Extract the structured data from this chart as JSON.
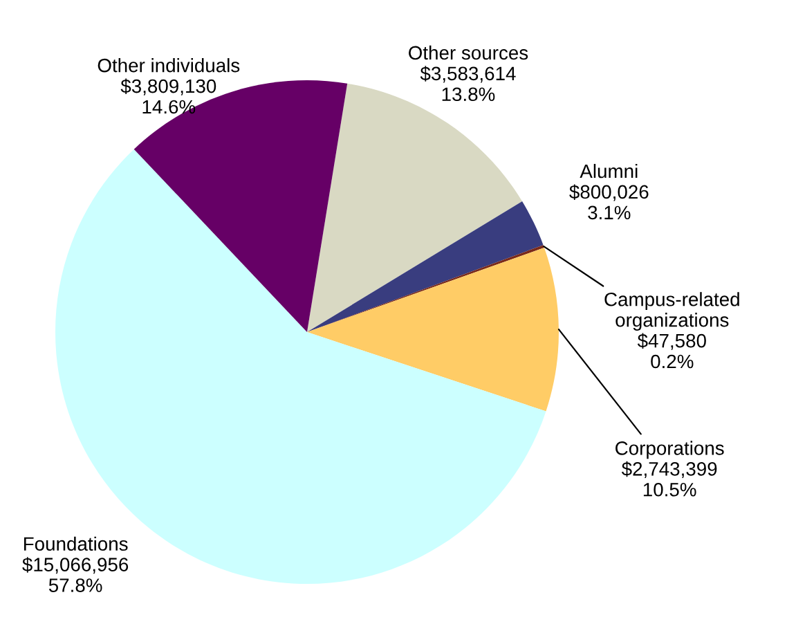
{
  "chart_data": {
    "type": "pie",
    "categories": [
      "Other sources",
      "Alumni",
      "Campus-related\norganizations",
      "Corporations",
      "Foundations",
      "Other individuals"
    ],
    "values": [
      3583614,
      800026,
      47580,
      2743399,
      15066956,
      3809130
    ],
    "value_labels": [
      "$3,583,614\n13.8%",
      "$800,026\n3.1%",
      "$47,580\n0.2%",
      "$2,743,399\n10.5%",
      "$15,066,956\n57.8%",
      "$3,809,130\n14.6%"
    ],
    "colors": [
      "#d9d9c3",
      "#393d7f",
      "#7a2a1a",
      "#ffcc66",
      "#ccffff",
      "#660066"
    ],
    "legend": false
  }
}
